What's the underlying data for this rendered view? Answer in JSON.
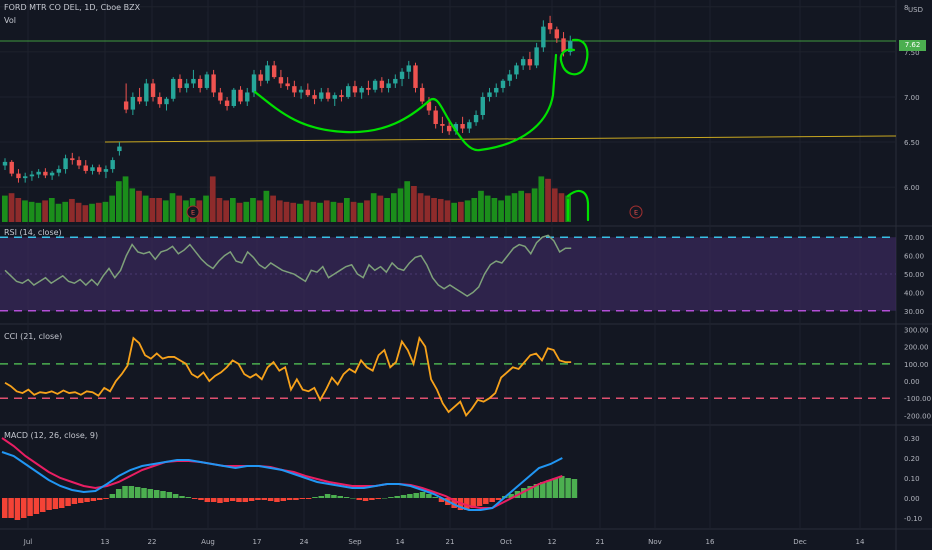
{
  "header": {
    "symbol_title": "FORD MTR CO DEL, 1D, Cboe BZX",
    "volume_label": "Vol",
    "currency": "USD"
  },
  "colors": {
    "background": "#131722",
    "up": "#26a69a",
    "down": "#ef5350",
    "volume_up": "#1b8e1b",
    "volume_down": "#8e2b2b",
    "drawing_green": "#00e000",
    "rsi_line": "#7ea07a",
    "rsi_band": "#3b2a5c",
    "cci_line": "#f7a21b",
    "macd_line": "#2196f3",
    "signal_line": "#e91e63",
    "hist_pos": "#4caf50",
    "hist_neg": "#f44336",
    "price_label_bg": "#4caf50",
    "yellow_line": "#c9a820"
  },
  "chart_data": [
    {
      "type": "candlestick",
      "y_ticks": [
        "8",
        "7.50",
        "7.00",
        "6.50",
        "6.00"
      ],
      "y_range": [
        5.58,
        8.02
      ],
      "last_price_label": "7.62",
      "earnings_markers": [
        "E",
        "E"
      ],
      "x_ticks": [
        "Jul",
        "13",
        "22",
        "Aug",
        "17",
        "24",
        "Sep",
        "14",
        "21",
        "Oct",
        "12",
        "21",
        "Nov",
        "16",
        "Dec",
        "14"
      ],
      "ohlc": [
        [
          6.24,
          6.32,
          6.19,
          6.28
        ],
        [
          6.28,
          6.3,
          6.12,
          6.15
        ],
        [
          6.15,
          6.2,
          6.05,
          6.1
        ],
        [
          6.1,
          6.16,
          6.05,
          6.12
        ],
        [
          6.12,
          6.18,
          6.07,
          6.14
        ],
        [
          6.14,
          6.2,
          6.1,
          6.17
        ],
        [
          6.17,
          6.21,
          6.1,
          6.13
        ],
        [
          6.13,
          6.18,
          6.08,
          6.16
        ],
        [
          6.16,
          6.24,
          6.12,
          6.2
        ],
        [
          6.2,
          6.36,
          6.15,
          6.32
        ],
        [
          6.32,
          6.38,
          6.25,
          6.3
        ],
        [
          6.3,
          6.34,
          6.2,
          6.24
        ],
        [
          6.24,
          6.3,
          6.15,
          6.18
        ],
        [
          6.18,
          6.25,
          6.14,
          6.22
        ],
        [
          6.22,
          6.25,
          6.14,
          6.17
        ],
        [
          6.17,
          6.24,
          6.1,
          6.2
        ],
        [
          6.2,
          6.33,
          6.16,
          6.3
        ],
        [
          6.4,
          6.5,
          6.35,
          6.45
        ],
        [
          6.95,
          7.15,
          6.82,
          6.86
        ],
        [
          6.86,
          7.05,
          6.8,
          7.0
        ],
        [
          7.0,
          7.1,
          6.92,
          6.95
        ],
        [
          6.95,
          7.2,
          6.9,
          7.15
        ],
        [
          7.15,
          7.2,
          6.95,
          7.0
        ],
        [
          7.0,
          7.05,
          6.88,
          6.92
        ],
        [
          6.92,
          7.0,
          6.85,
          6.98
        ],
        [
          6.98,
          7.22,
          6.95,
          7.2
        ],
        [
          7.2,
          7.25,
          7.05,
          7.1
        ],
        [
          7.1,
          7.2,
          7.05,
          7.15
        ],
        [
          7.15,
          7.3,
          7.1,
          7.2
        ],
        [
          7.2,
          7.24,
          7.05,
          7.1
        ],
        [
          7.1,
          7.28,
          7.08,
          7.25
        ],
        [
          7.25,
          7.3,
          7.0,
          7.05
        ],
        [
          7.05,
          7.1,
          6.92,
          6.96
        ],
        [
          6.96,
          7.0,
          6.85,
          6.9
        ],
        [
          6.9,
          7.1,
          6.88,
          7.08
        ],
        [
          7.08,
          7.12,
          6.92,
          6.95
        ],
        [
          6.95,
          7.1,
          6.9,
          7.05
        ],
        [
          7.05,
          7.3,
          7.0,
          7.25
        ],
        [
          7.25,
          7.3,
          7.12,
          7.18
        ],
        [
          7.18,
          7.4,
          7.15,
          7.35
        ],
        [
          7.35,
          7.4,
          7.2,
          7.22
        ],
        [
          7.22,
          7.3,
          7.1,
          7.15
        ],
        [
          7.15,
          7.22,
          7.08,
          7.12
        ],
        [
          7.12,
          7.18,
          7.0,
          7.05
        ],
        [
          7.05,
          7.12,
          6.98,
          7.08
        ],
        [
          7.08,
          7.15,
          7.0,
          7.02
        ],
        [
          7.02,
          7.08,
          6.92,
          6.98
        ],
        [
          6.98,
          7.1,
          6.95,
          7.05
        ],
        [
          7.05,
          7.1,
          6.95,
          6.98
        ],
        [
          6.98,
          7.05,
          6.9,
          7.02
        ],
        [
          7.02,
          7.08,
          6.95,
          7.0
        ],
        [
          7.0,
          7.15,
          6.98,
          7.12
        ],
        [
          7.12,
          7.18,
          7.0,
          7.05
        ],
        [
          7.05,
          7.12,
          6.98,
          7.1
        ],
        [
          7.1,
          7.18,
          7.02,
          7.08
        ],
        [
          7.08,
          7.2,
          7.05,
          7.18
        ],
        [
          7.18,
          7.22,
          7.05,
          7.1
        ],
        [
          7.1,
          7.2,
          7.05,
          7.15
        ],
        [
          7.15,
          7.25,
          7.1,
          7.2
        ],
        [
          7.2,
          7.32,
          7.12,
          7.28
        ],
        [
          7.28,
          7.4,
          7.2,
          7.35
        ],
        [
          7.35,
          7.38,
          7.05,
          7.1
        ],
        [
          7.1,
          7.15,
          6.92,
          6.95
        ],
        [
          6.95,
          7.0,
          6.8,
          6.85
        ],
        [
          6.85,
          6.9,
          6.65,
          6.7
        ],
        [
          6.7,
          6.78,
          6.6,
          6.68
        ],
        [
          6.68,
          6.75,
          6.58,
          6.62
        ],
        [
          6.62,
          6.72,
          6.58,
          6.7
        ],
        [
          6.7,
          6.78,
          6.6,
          6.65
        ],
        [
          6.65,
          6.75,
          6.6,
          6.72
        ],
        [
          6.72,
          6.85,
          6.68,
          6.8
        ],
        [
          6.8,
          7.05,
          6.75,
          7.0
        ],
        [
          7.0,
          7.1,
          6.95,
          7.05
        ],
        [
          7.05,
          7.15,
          7.0,
          7.1
        ],
        [
          7.1,
          7.2,
          7.05,
          7.18
        ],
        [
          7.18,
          7.3,
          7.12,
          7.25
        ],
        [
          7.25,
          7.38,
          7.2,
          7.35
        ],
        [
          7.35,
          7.45,
          7.3,
          7.42
        ],
        [
          7.42,
          7.5,
          7.3,
          7.35
        ],
        [
          7.35,
          7.6,
          7.32,
          7.55
        ],
        [
          7.55,
          7.85,
          7.5,
          7.78
        ],
        [
          7.82,
          7.9,
          7.7,
          7.75
        ],
        [
          7.75,
          7.78,
          7.6,
          7.65
        ],
        [
          7.65,
          7.72,
          7.45,
          7.5
        ],
        [
          7.5,
          7.68,
          7.46,
          7.62
        ]
      ],
      "volume_up": [
        true,
        false,
        false,
        true,
        true,
        true,
        false,
        true,
        true,
        true,
        false,
        false,
        false,
        true,
        false,
        true,
        true,
        true,
        true,
        true,
        false,
        true,
        false,
        false,
        true,
        true,
        false,
        true,
        true,
        false,
        true,
        false,
        false,
        false,
        true,
        false,
        true,
        true,
        false,
        true,
        false,
        false,
        false,
        false,
        true,
        false,
        false,
        true,
        false,
        true,
        false,
        true,
        false,
        true,
        false,
        true,
        false,
        true,
        true,
        true,
        true,
        false,
        false,
        false,
        false,
        false,
        false,
        true,
        false,
        true,
        true,
        true,
        true,
        true,
        true,
        true,
        true,
        true,
        false,
        true,
        true,
        false,
        false,
        false,
        true
      ],
      "volume": [
        0.55,
        0.6,
        0.5,
        0.45,
        0.42,
        0.4,
        0.45,
        0.5,
        0.38,
        0.42,
        0.48,
        0.4,
        0.35,
        0.38,
        0.4,
        0.42,
        0.55,
        0.85,
        0.95,
        0.7,
        0.65,
        0.55,
        0.5,
        0.5,
        0.45,
        0.6,
        0.55,
        0.45,
        0.5,
        0.45,
        0.55,
        0.95,
        0.5,
        0.45,
        0.5,
        0.4,
        0.42,
        0.5,
        0.45,
        0.65,
        0.55,
        0.45,
        0.42,
        0.4,
        0.38,
        0.45,
        0.42,
        0.4,
        0.45,
        0.42,
        0.4,
        0.5,
        0.42,
        0.4,
        0.45,
        0.6,
        0.55,
        0.5,
        0.6,
        0.7,
        0.85,
        0.75,
        0.6,
        0.55,
        0.5,
        0.48,
        0.45,
        0.4,
        0.42,
        0.45,
        0.5,
        0.65,
        0.55,
        0.5,
        0.45,
        0.55,
        0.6,
        0.65,
        0.6,
        0.7,
        0.95,
        0.9,
        0.7,
        0.6,
        0.55
      ]
    },
    {
      "type": "line",
      "label": "RSI (14, close)",
      "y_ticks": [
        "70.00",
        "60.00",
        "50.00",
        "40.00",
        "30.00"
      ],
      "y_range": [
        25,
        75
      ],
      "band": [
        30,
        70
      ],
      "values": [
        52,
        49,
        46,
        45,
        47,
        44,
        46,
        48,
        45,
        47,
        49,
        46,
        45,
        47,
        44,
        47,
        44,
        49,
        53,
        48,
        52,
        60,
        66,
        62,
        61,
        62,
        58,
        62,
        63,
        65,
        61,
        63,
        66,
        62,
        58,
        55,
        53,
        57,
        60,
        62,
        57,
        56,
        62,
        59,
        55,
        53,
        56,
        54,
        52,
        51,
        50,
        48,
        46,
        52,
        51,
        54,
        48,
        50,
        52,
        54,
        55,
        50,
        48,
        55,
        52,
        54,
        51,
        56,
        53,
        52,
        56,
        59,
        60,
        55,
        48,
        44,
        42,
        44,
        42,
        40,
        38,
        40,
        43,
        50,
        55,
        57,
        56,
        60,
        64,
        66,
        65,
        61,
        67,
        70,
        71,
        68,
        62,
        64,
        64
      ],
      "color": "#7ea07a"
    },
    {
      "type": "line",
      "label": "CCI (21, close)",
      "y_ticks": [
        "300.00",
        "200.00",
        "100.00",
        "0.00",
        "-100.00",
        "-200.00"
      ],
      "y_range": [
        -250,
        320
      ],
      "levels": [
        100,
        -100
      ],
      "values": [
        -10,
        -30,
        -60,
        -70,
        -50,
        -80,
        -65,
        -70,
        -60,
        -75,
        -55,
        -70,
        -65,
        -80,
        -60,
        -65,
        -85,
        -40,
        -60,
        0,
        40,
        90,
        250,
        220,
        150,
        130,
        160,
        130,
        140,
        140,
        120,
        100,
        40,
        20,
        50,
        0,
        30,
        50,
        80,
        120,
        100,
        40,
        20,
        40,
        10,
        80,
        110,
        60,
        80,
        -50,
        10,
        -50,
        -60,
        -40,
        -110,
        -50,
        20,
        -20,
        40,
        70,
        50,
        120,
        80,
        60,
        150,
        180,
        80,
        110,
        230,
        180,
        100,
        250,
        200,
        10,
        -50,
        -130,
        -180,
        -150,
        -120,
        -200,
        -160,
        -110,
        -120,
        -100,
        -70,
        20,
        50,
        80,
        70,
        110,
        150,
        160,
        120,
        190,
        180,
        120,
        110,
        110
      ],
      "color": "#f7a21b"
    },
    {
      "type": "macd",
      "label": "MACD (12, 26, close, 9)",
      "y_ticks": [
        "0.30",
        "0.20",
        "0.10",
        "0.00",
        "-0.10"
      ],
      "y_range": [
        -0.15,
        0.35
      ],
      "macd": [
        0.23,
        0.21,
        0.17,
        0.13,
        0.09,
        0.06,
        0.04,
        0.03,
        0.035,
        0.07,
        0.11,
        0.14,
        0.16,
        0.17,
        0.18,
        0.19,
        0.19,
        0.18,
        0.17,
        0.16,
        0.15,
        0.16,
        0.16,
        0.15,
        0.14,
        0.12,
        0.1,
        0.08,
        0.07,
        0.06,
        0.05,
        0.05,
        0.06,
        0.07,
        0.07,
        0.06,
        0.04,
        0.02,
        -0.01,
        -0.04,
        -0.06,
        -0.06,
        -0.05,
        0.0,
        0.05,
        0.1,
        0.15,
        0.17,
        0.2
      ],
      "signal": [
        0.3,
        0.26,
        0.21,
        0.17,
        0.13,
        0.1,
        0.08,
        0.06,
        0.05,
        0.06,
        0.08,
        0.11,
        0.14,
        0.16,
        0.18,
        0.185,
        0.185,
        0.18,
        0.17,
        0.16,
        0.16,
        0.16,
        0.16,
        0.155,
        0.14,
        0.13,
        0.11,
        0.095,
        0.08,
        0.07,
        0.06,
        0.06,
        0.06,
        0.07,
        0.07,
        0.065,
        0.05,
        0.03,
        0.01,
        -0.02,
        -0.04,
        -0.05,
        -0.05,
        -0.02,
        0.01,
        0.04,
        0.07,
        0.09,
        0.11
      ],
      "histogram": [
        -0.1,
        -0.1,
        -0.11,
        -0.1,
        -0.09,
        -0.08,
        -0.07,
        -0.06,
        -0.055,
        -0.05,
        -0.04,
        -0.03,
        -0.025,
        -0.02,
        -0.015,
        -0.01,
        -0.005,
        0.02,
        0.045,
        0.06,
        0.06,
        0.055,
        0.05,
        0.045,
        0.04,
        0.035,
        0.03,
        0.02,
        0.01,
        0.005,
        -0.005,
        -0.01,
        -0.02,
        -0.02,
        -0.025,
        -0.02,
        -0.015,
        -0.02,
        -0.02,
        -0.015,
        -0.01,
        -0.01,
        -0.015,
        -0.02,
        -0.015,
        -0.01,
        -0.01,
        -0.005,
        -0.005,
        0.005,
        0.01,
        0.02,
        0.015,
        0.01,
        0.005,
        0.0,
        -0.01,
        -0.015,
        -0.01,
        -0.005,
        0.0,
        0.005,
        0.01,
        0.015,
        0.02,
        0.025,
        0.03,
        0.02,
        0.005,
        -0.02,
        -0.035,
        -0.05,
        -0.06,
        -0.06,
        -0.05,
        -0.04,
        -0.03,
        -0.02,
        -0.01,
        0.01,
        0.02,
        0.035,
        0.05,
        0.06,
        0.07,
        0.08,
        0.09,
        0.1,
        0.11,
        0.1,
        0.095
      ]
    }
  ]
}
